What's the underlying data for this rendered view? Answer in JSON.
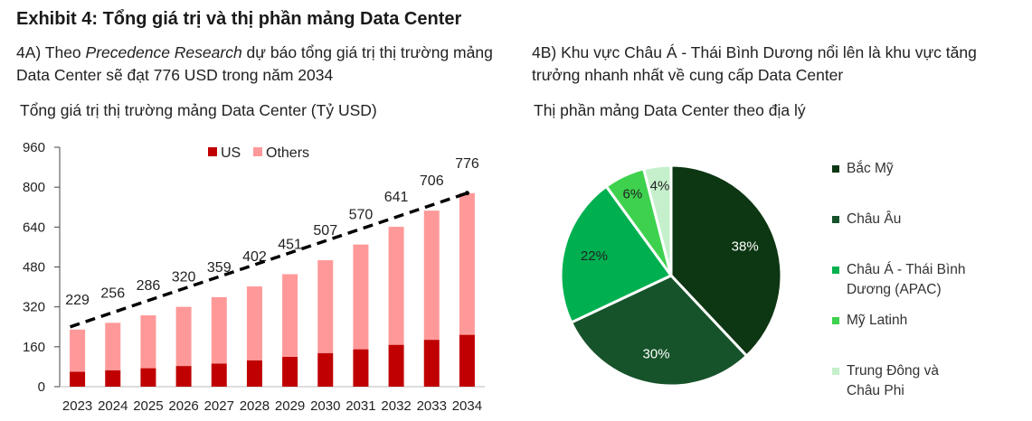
{
  "exhibit_title": "Exhibit 4: Tổng giá trị và thị phần mảng Data Center",
  "panel_a": {
    "subtitle_prefix": "4A) Theo ",
    "subtitle_italic": "Precedence Research",
    "subtitle_suffix": " dự báo tổng giá trị thị trường mảng Data Center sẽ đạt 776 USD trong năm 2034",
    "chart_title": "Tổng giá trị thị trường mảng Data Center (Tỷ USD)"
  },
  "panel_b": {
    "subtitle": "4B) Khu vực Châu Á - Thái Bình Dương nổi lên là khu vực tăng trưởng nhanh nhất về cung cấp Data Center",
    "chart_title": "Thị phần mảng Data Center theo địa lý"
  },
  "chart_data": [
    {
      "type": "bar",
      "stacked": true,
      "categories": [
        "2023",
        "2024",
        "2025",
        "2026",
        "2027",
        "2028",
        "2029",
        "2030",
        "2031",
        "2032",
        "2033",
        "2034"
      ],
      "series": [
        {
          "name": "US",
          "color": "#c00000",
          "values": [
            60,
            66,
            74,
            83,
            93,
            106,
            120,
            135,
            150,
            168,
            188,
            208
          ]
        },
        {
          "name": "Others",
          "color": "#ff9999",
          "values": [
            169,
            190,
            212,
            237,
            266,
            296,
            331,
            372,
            420,
            473,
            518,
            568
          ]
        }
      ],
      "totals": [
        229,
        256,
        286,
        320,
        359,
        402,
        451,
        507,
        570,
        641,
        706,
        776
      ],
      "trend_line": {
        "style": "dashed",
        "color": "#000000"
      },
      "yticks": [
        0,
        160,
        320,
        480,
        640,
        800,
        960
      ],
      "ylim": [
        0,
        960
      ],
      "grid": false,
      "legend": "top-center"
    },
    {
      "type": "pie",
      "labels": [
        "Bắc Mỹ",
        "Châu Âu",
        "Châu Á - Thái Bình Dương (APAC)",
        "Mỹ Latinh",
        "Trung Đông và Châu Phi"
      ],
      "values": [
        38,
        30,
        22,
        6,
        4
      ],
      "value_labels": [
        "38%",
        "30%",
        "22%",
        "6%",
        "4%"
      ],
      "colors": [
        "#0d3612",
        "#16532a",
        "#00b050",
        "#3ed14e",
        "#c5f0cb"
      ],
      "legend": "right"
    }
  ]
}
